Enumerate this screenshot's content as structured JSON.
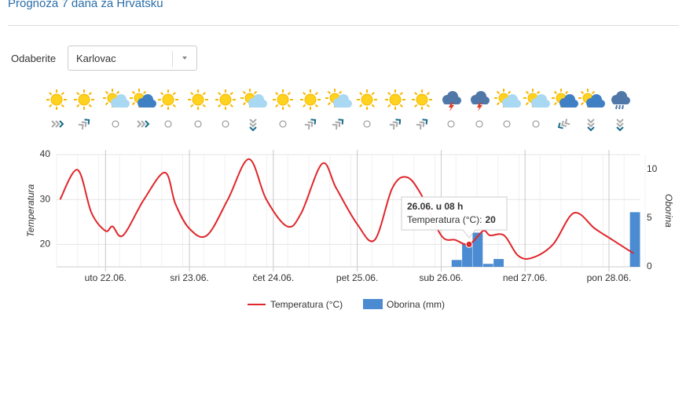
{
  "header": {
    "title": "Prognoza 7 dana za Hrvatsku"
  },
  "picker": {
    "label": "Odaberite",
    "selected": "Karlovac"
  },
  "chart_data": {
    "type": "line",
    "x": [
      "21.06. 11 h",
      "21.06. 16 h",
      "21.06. 20 h",
      "22.06. 00 h",
      "22.06. 02 h",
      "22.06. 05 h",
      "22.06. 11 h",
      "22.06. 17 h",
      "22.06. 20 h",
      "23.06. 00 h",
      "23.06. 05 h",
      "23.06. 11 h",
      "23.06. 17 h",
      "23.06. 22 h",
      "24.06. 04 h",
      "24.06. 08 h",
      "24.06. 14 h",
      "24.06. 18 h",
      "25.06. 00 h",
      "25.06. 05 h",
      "25.06. 10 h",
      "25.06. 14 h",
      "25.06. 18 h",
      "26.06. 00 h",
      "26.06. 04 h",
      "26.06. 08 h",
      "26.06. 12 h",
      "26.06. 14 h",
      "26.06. 18 h",
      "26.06. 22 h",
      "27.06. 02 h",
      "27.06. 08 h",
      "27.06. 14 h",
      "27.06. 20 h",
      "28.06. 01 h",
      "28.06. 07 h"
    ],
    "series": [
      {
        "name": "Temperatura (°C)",
        "color": "#e0262b",
        "values": [
          30,
          36.6,
          27,
          23,
          24,
          22,
          30,
          36,
          29,
          23.5,
          22,
          30,
          39,
          30,
          24,
          27,
          38,
          32.5,
          24.5,
          21,
          32.5,
          35,
          31.5,
          22,
          21,
          20,
          23,
          22,
          22,
          17.5,
          17,
          20,
          27,
          23.5,
          21,
          18
        ]
      },
      {
        "name": "Oborina (mm)",
        "color": "#4a8bd1",
        "axis": "y2",
        "x": [
          "26.06. 03 h",
          "26.06. 06 h",
          "26.06. 09 h",
          "26.06. 12 h",
          "26.06. 15 h",
          "28.06. 06 h"
        ],
        "values": [
          0.7,
          2.4,
          3.5,
          0.3,
          0.8,
          5.6
        ]
      }
    ],
    "xlim": [
      "21.06. 10 h",
      "28.06. 09 h"
    ],
    "xticks": [
      {
        "value": "22.06. 00 h",
        "label": "uto 22.06."
      },
      {
        "value": "23.06. 00 h",
        "label": "sri 23.06."
      },
      {
        "value": "24.06. 00 h",
        "label": "čet 24.06."
      },
      {
        "value": "25.06. 00 h",
        "label": "pet 25.06."
      },
      {
        "value": "26.06. 00 h",
        "label": "sub 26.06."
      },
      {
        "value": "27.06. 00 h",
        "label": "ned 27.06."
      },
      {
        "value": "28.06. 00 h",
        "label": "pon 28.06."
      }
    ],
    "ylim": [
      15,
      40
    ],
    "yticks": [
      20,
      30,
      40
    ],
    "ylabel": "Temperatura",
    "y2lim": [
      0,
      11.5
    ],
    "y2ticks": [
      0,
      5,
      10
    ],
    "y2label": "Oborina",
    "grid": true,
    "tooltip": {
      "title": "26.06. u 08 h",
      "label": "Temperatura (°C):"
    }
  }
}
